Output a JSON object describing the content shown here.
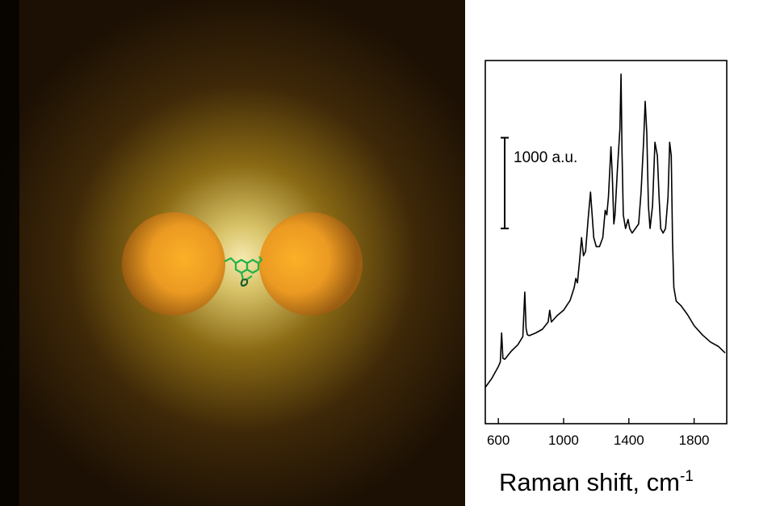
{
  "illustration": {
    "background_color": "#2a1a06",
    "glow_color": "#f5e9b0",
    "sphere_color": "#f2a225",
    "molecule_color": "#22b24a"
  },
  "chart_data": {
    "type": "line",
    "title": "",
    "xlabel": "Raman shift, cm",
    "xlabel_superscript": "-1",
    "ylabel": "",
    "xlim": [
      520,
      2000
    ],
    "ylim": [
      -400,
      3600
    ],
    "xticks": [
      600,
      1000,
      1400,
      1800
    ],
    "x_tick_labels": [
      "600",
      "1000",
      "1400",
      "1800"
    ],
    "y_ticks_shown": false,
    "scale_bar": {
      "label": "1000 a.u.",
      "length": 1000,
      "y_from": 1750
    },
    "grid": false,
    "legend": "none",
    "line_color": "#000000",
    "series": [
      {
        "x": [
          520,
          560,
          600,
          612,
          620,
          628,
          640,
          680,
          720,
          750,
          762,
          770,
          778,
          790,
          830,
          870,
          905,
          915,
          925,
          960,
          1000,
          1040,
          1065,
          1075,
          1085,
          1098,
          1110,
          1122,
          1135,
          1150,
          1165,
          1175,
          1185,
          1200,
          1220,
          1240,
          1255,
          1265,
          1275,
          1290,
          1298,
          1308,
          1315,
          1330,
          1345,
          1352,
          1358,
          1366,
          1380,
          1395,
          1405,
          1420,
          1440,
          1460,
          1475,
          1490,
          1500,
          1510,
          1520,
          1530,
          1545,
          1560,
          1575,
          1585,
          1595,
          1610,
          1625,
          1640,
          1650,
          1660,
          1668,
          1676,
          1690,
          1720,
          1760,
          1800,
          1850,
          1900,
          1950,
          1990
        ],
        "y": [
          0,
          100,
          230,
          280,
          600,
          320,
          310,
          400,
          470,
          560,
          1050,
          650,
          580,
          570,
          600,
          640,
          720,
          850,
          720,
          790,
          850,
          960,
          1100,
          1200,
          1150,
          1400,
          1650,
          1450,
          1500,
          1850,
          2150,
          1900,
          1650,
          1550,
          1550,
          1650,
          1950,
          1900,
          2100,
          2650,
          2350,
          1800,
          1900,
          2400,
          2850,
          3450,
          2600,
          1900,
          1750,
          1850,
          1750,
          1700,
          1750,
          1800,
          2150,
          2700,
          3150,
          2800,
          2000,
          1750,
          2000,
          2700,
          2550,
          2100,
          1750,
          1700,
          1750,
          2100,
          2700,
          2550,
          1600,
          1100,
          950,
          900,
          800,
          680,
          580,
          500,
          450,
          380
        ]
      }
    ]
  }
}
